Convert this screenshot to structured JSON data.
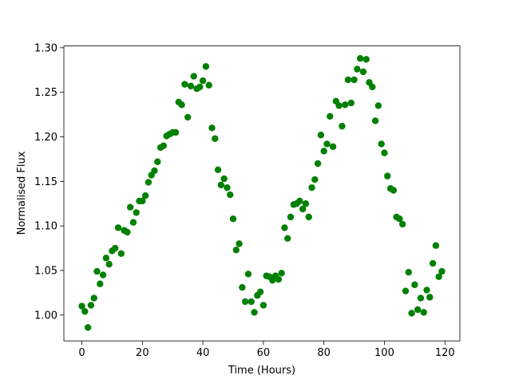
{
  "chart_data": {
    "type": "scatter",
    "xlabel": "Time (Hours)",
    "ylabel": "Normalised Flux",
    "color": "#008000",
    "x": [
      0,
      1,
      2,
      3,
      4,
      5,
      6,
      7,
      8,
      9,
      10,
      11,
      12,
      13,
      14,
      15,
      16,
      17,
      18,
      19,
      20,
      21,
      22,
      23,
      24,
      25,
      26,
      27,
      28,
      29,
      30,
      31,
      32,
      33,
      34,
      35,
      36,
      37,
      38,
      39,
      40,
      41,
      42,
      43,
      44,
      45,
      46,
      47,
      48,
      49,
      50,
      51,
      52,
      53,
      54,
      55,
      56,
      57,
      58,
      59,
      60,
      61,
      62,
      63,
      64,
      65,
      66,
      67,
      68,
      69,
      70,
      71,
      72,
      73,
      74,
      75,
      76,
      77,
      78,
      79,
      80,
      81,
      82,
      83,
      84,
      85,
      86,
      87,
      88,
      89,
      90,
      91,
      92,
      93,
      94,
      95,
      96,
      97,
      98,
      99,
      100,
      101,
      102,
      103,
      104,
      105,
      106,
      107,
      108,
      109,
      110,
      111,
      112,
      113,
      114,
      115,
      116,
      117,
      118,
      119
    ],
    "values": [
      1.01,
      1.004,
      0.986,
      1.011,
      1.019,
      1.049,
      1.035,
      1.045,
      1.064,
      1.057,
      1.072,
      1.075,
      1.098,
      1.069,
      1.095,
      1.093,
      1.121,
      1.104,
      1.115,
      1.128,
      1.128,
      1.134,
      1.149,
      1.157,
      1.162,
      1.172,
      1.188,
      1.19,
      1.201,
      1.203,
      1.205,
      1.205,
      1.239,
      1.236,
      1.259,
      1.222,
      1.257,
      1.268,
      1.254,
      1.256,
      1.263,
      1.279,
      1.258,
      1.21,
      1.198,
      1.163,
      1.146,
      1.153,
      1.143,
      1.135,
      1.108,
      1.073,
      1.08,
      1.031,
      1.015,
      1.046,
      1.015,
      1.003,
      1.022,
      1.026,
      1.011,
      1.044,
      1.043,
      1.039,
      1.044,
      1.04,
      1.047,
      1.098,
      1.086,
      1.11,
      1.124,
      1.125,
      1.128,
      1.119,
      1.125,
      1.11,
      1.143,
      1.152,
      1.17,
      1.202,
      1.184,
      1.192,
      1.223,
      1.189,
      1.24,
      1.235,
      1.212,
      1.236,
      1.264,
      1.238,
      1.264,
      1.276,
      1.288,
      1.273,
      1.287,
      1.261,
      1.256,
      1.218,
      1.235,
      1.192,
      1.182,
      1.156,
      1.142,
      1.14,
      1.11,
      1.108,
      1.102,
      1.027,
      1.048,
      1.002,
      1.034,
      1.006,
      1.019,
      1.003,
      1.028,
      1.02,
      1.058,
      1.078,
      1.043,
      1.049
    ],
    "xlim": [
      -5.95,
      124.95
    ],
    "xticks": [
      0,
      20,
      40,
      60,
      80,
      100,
      120
    ],
    "ylim": [
      0.971,
      1.302
    ],
    "yticks": [
      {
        "value": 1.0,
        "label": "1.00"
      },
      {
        "value": 1.05,
        "label": "1.05"
      },
      {
        "value": 1.1,
        "label": "1.10"
      },
      {
        "value": 1.15,
        "label": "1.15"
      },
      {
        "value": 1.2,
        "label": "1.20"
      },
      {
        "value": 1.25,
        "label": "1.25"
      },
      {
        "value": 1.3,
        "label": "1.30"
      }
    ]
  }
}
